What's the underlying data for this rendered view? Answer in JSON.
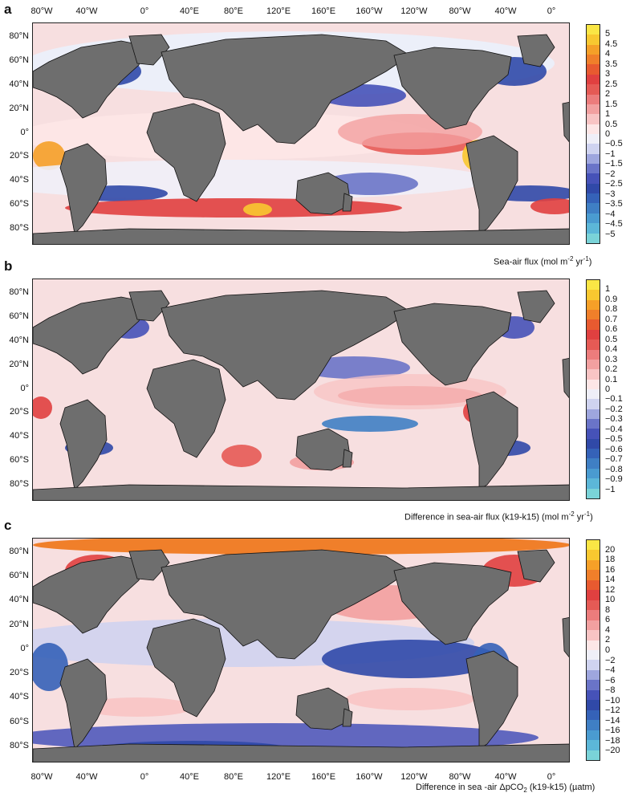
{
  "lon_ticks": [
    "80°W",
    "40°W",
    "0°",
    "40°E",
    "80°E",
    "120°E",
    "160°E",
    "160°W",
    "120°W",
    "80°W",
    "40°W",
    "0°"
  ],
  "lat_ticks": [
    "80°N",
    "60°N",
    "40°N",
    "20°N",
    "0°",
    "20°S",
    "40°S",
    "60°S",
    "80°S"
  ],
  "colors": {
    "land": "#6e6e6e",
    "ocean_neutral": "#f7dfe0",
    "panel_a_scale": [
      "#7ad3d8",
      "#5cb7d8",
      "#4a9bd0",
      "#3f7fc4",
      "#3562b8",
      "#3049a8",
      "#4652b8",
      "#6a74c8",
      "#9ea6de",
      "#cfd3f0",
      "#efeff8",
      "#fde6e6",
      "#f8c4c4",
      "#f2a0a0",
      "#ec7c7c",
      "#e55a55",
      "#e04040",
      "#e85a30",
      "#f07f2a",
      "#f5a028",
      "#f8c830",
      "#fae645"
    ]
  },
  "panels": [
    {
      "letter": "a",
      "caption": "Sea-air flux (mol m",
      "caption_sup1": "-2",
      "caption_mid": " yr",
      "caption_sup2": "-1",
      "caption_end": ")",
      "cbar_labels": [
        "5",
        "4.5",
        "4",
        "3.5",
        "3",
        "2.5",
        "2",
        "1.5",
        "1",
        "0.5",
        "0",
        "−0.5",
        "−1",
        "−1.5",
        "−2",
        "−2.5",
        "−3",
        "−3.5",
        "−4",
        "−4.5",
        "−5"
      ]
    },
    {
      "letter": "b",
      "caption": "Difference in sea-air flux (k19-k15) (mol m",
      "caption_sup1": "-2",
      "caption_mid": " yr",
      "caption_sup2": "-1",
      "caption_end": ")",
      "cbar_labels": [
        "1",
        "0.9",
        "0.8",
        "0.7",
        "0.6",
        "0.5",
        "0.4",
        "0.3",
        "0.2",
        "0.1",
        "0",
        "−0.1",
        "−0.2",
        "−0.3",
        "−0.4",
        "−0.5",
        "−0.6",
        "−0.7",
        "−0.8",
        "−0.9",
        "−1"
      ]
    },
    {
      "letter": "c",
      "caption": "Difference in sea -air ΔpCO",
      "caption_sub": "2",
      "caption_end2": " (k19-k15) (µatm)",
      "cbar_labels": [
        "20",
        "18",
        "16",
        "14",
        "12",
        "10",
        "8",
        "6",
        "4",
        "2",
        "0",
        "−2",
        "−4",
        "−6",
        "−8",
        "−10",
        "−12",
        "−14",
        "−16",
        "−18",
        "−20"
      ]
    }
  ]
}
